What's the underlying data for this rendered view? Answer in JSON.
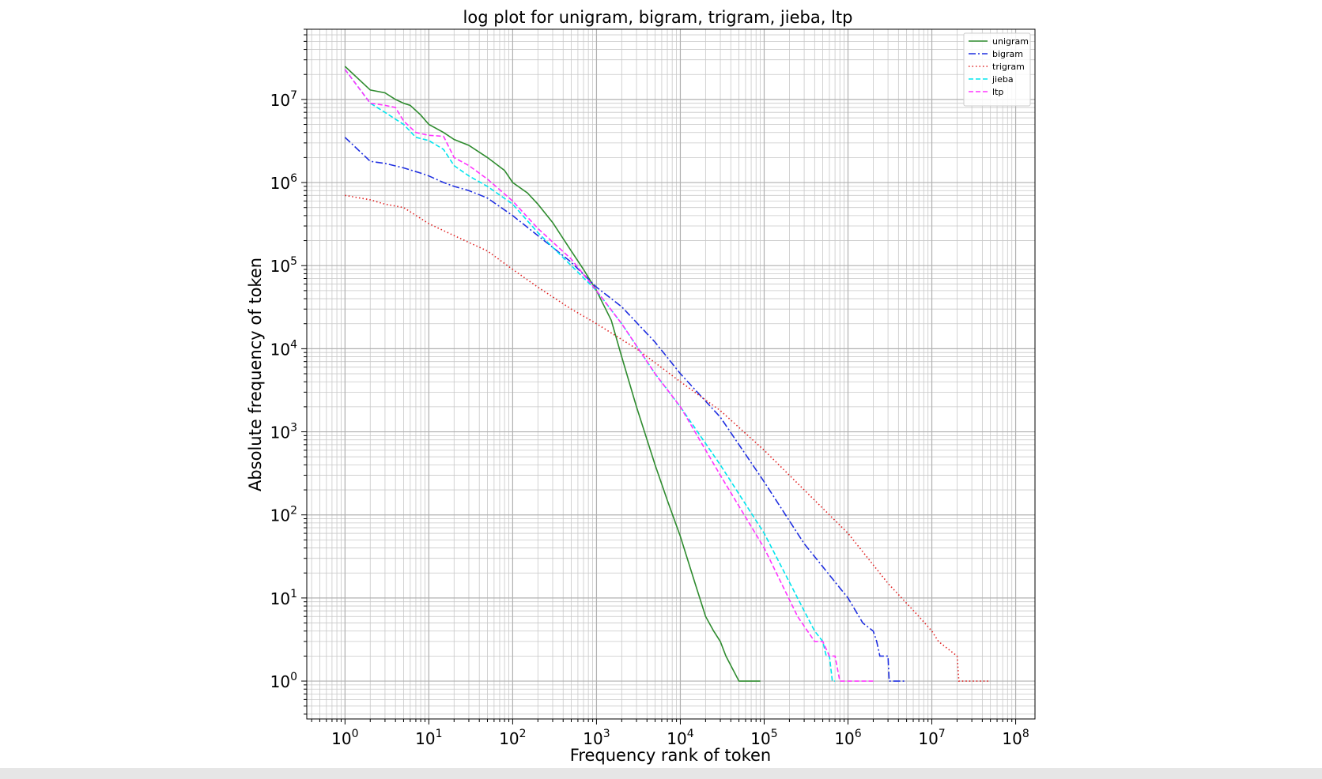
{
  "chart_data": {
    "type": "line",
    "title": "log plot for unigram, bigram, trigram, jieba, ltp",
    "xlabel": "Frequency rank of token",
    "ylabel": "Absolute frequency of token",
    "xscale": "log",
    "yscale": "log",
    "xlim": [
      0.35,
      170000000.0
    ],
    "ylim": [
      0.35,
      70000000.0
    ],
    "x_ticks": [
      {
        "value": 1,
        "base": "10",
        "exp": "0"
      },
      {
        "value": 10,
        "base": "10",
        "exp": "1"
      },
      {
        "value": 100,
        "base": "10",
        "exp": "2"
      },
      {
        "value": 1000,
        "base": "10",
        "exp": "3"
      },
      {
        "value": 10000,
        "base": "10",
        "exp": "4"
      },
      {
        "value": 100000,
        "base": "10",
        "exp": "5"
      },
      {
        "value": 1000000,
        "base": "10",
        "exp": "6"
      },
      {
        "value": 10000000,
        "base": "10",
        "exp": "7"
      },
      {
        "value": 100000000,
        "base": "10",
        "exp": "8"
      }
    ],
    "y_ticks": [
      {
        "value": 1,
        "base": "10",
        "exp": "0"
      },
      {
        "value": 10,
        "base": "10",
        "exp": "1"
      },
      {
        "value": 100,
        "base": "10",
        "exp": "2"
      },
      {
        "value": 1000,
        "base": "10",
        "exp": "3"
      },
      {
        "value": 10000,
        "base": "10",
        "exp": "4"
      },
      {
        "value": 100000,
        "base": "10",
        "exp": "5"
      },
      {
        "value": 1000000,
        "base": "10",
        "exp": "6"
      },
      {
        "value": 10000000,
        "base": "10",
        "exp": "7"
      }
    ],
    "grid": true,
    "legend_position": "top-right",
    "series": [
      {
        "name": "unigram",
        "color": "#2e8b2e",
        "dash": "solid",
        "x": [
          1,
          2,
          3,
          4,
          5,
          6,
          8,
          10,
          15,
          20,
          30,
          50,
          80,
          100,
          150,
          200,
          300,
          500,
          700,
          1000,
          1500,
          2000,
          3000,
          5000,
          7000,
          10000,
          15000,
          20000,
          25000,
          30000,
          35000,
          50000,
          60000,
          90000
        ],
        "y": [
          25000000,
          13000000,
          12000000,
          10000000,
          9000000,
          8500000,
          6500000,
          5000000,
          4000000,
          3300000,
          2800000,
          2000000,
          1400000,
          1000000,
          750000,
          550000,
          330000,
          150000,
          90000,
          50000,
          22000,
          8000,
          2000,
          400,
          150,
          55,
          15,
          6,
          4,
          3,
          2,
          1,
          1,
          1
        ]
      },
      {
        "name": "bigram",
        "color": "#1f2fe0",
        "dash": "dashdot",
        "x": [
          1,
          2,
          3,
          5,
          8,
          10,
          15,
          20,
          30,
          50,
          100,
          200,
          500,
          1000,
          2000,
          5000,
          10000,
          30000,
          100000,
          300000,
          1000000,
          1500000,
          2000000,
          2200000,
          2400000,
          3000000,
          3100000,
          5000000
        ],
        "y": [
          3500000,
          1800000,
          1700000,
          1500000,
          1300000,
          1200000,
          1000000,
          900000,
          800000,
          650000,
          400000,
          230000,
          110000,
          55000,
          32000,
          12000,
          5000,
          1500,
          250,
          45,
          10,
          5,
          4,
          3,
          2,
          2,
          1,
          1
        ]
      },
      {
        "name": "trigram",
        "color": "#e02020",
        "dash": "dotted",
        "x": [
          1,
          2,
          3,
          5,
          10,
          20,
          50,
          100,
          200,
          500,
          1000,
          3000,
          10000,
          30000,
          100000,
          300000,
          1000000,
          3000000,
          7000000,
          10000000,
          12000000,
          20000000,
          21000000,
          50000000
        ],
        "y": [
          700000,
          620000,
          550000,
          500000,
          320000,
          230000,
          150000,
          90000,
          55000,
          30000,
          20000,
          10000,
          4000,
          1800,
          600,
          200,
          60,
          15,
          6,
          4,
          3,
          2,
          1,
          1
        ]
      },
      {
        "name": "jieba",
        "color": "#00e5ee",
        "dash": "dashed",
        "x": [
          1,
          2,
          3,
          5,
          7,
          10,
          15,
          20,
          30,
          50,
          100,
          200,
          500,
          1000,
          2000,
          5000,
          10000,
          30000,
          100000,
          300000,
          400000,
          500000,
          550000,
          600000,
          650000,
          700000
        ],
        "y": [
          23000000,
          9000000,
          7000000,
          5000000,
          3500000,
          3200000,
          2500000,
          1600000,
          1200000,
          900000,
          550000,
          250000,
          100000,
          50000,
          20000,
          5000,
          2000,
          400,
          60,
          7,
          4,
          3,
          2,
          2,
          1,
          1
        ]
      },
      {
        "name": "ltp",
        "color": "#ff33ff",
        "dash": "dashed",
        "x": [
          1,
          2,
          3,
          4,
          5,
          7,
          10,
          15,
          20,
          30,
          50,
          100,
          200,
          500,
          1000,
          2000,
          5000,
          10000,
          30000,
          100000,
          250000,
          400000,
          500000,
          600000,
          700000,
          800000,
          2000000
        ],
        "y": [
          23000000,
          9000000,
          8500000,
          8000000,
          5500000,
          4000000,
          3700000,
          3600000,
          2000000,
          1600000,
          1100000,
          600000,
          280000,
          120000,
          50000,
          20000,
          5000,
          2000,
          300,
          40,
          6,
          3,
          3,
          2,
          2,
          1,
          1
        ]
      }
    ]
  }
}
